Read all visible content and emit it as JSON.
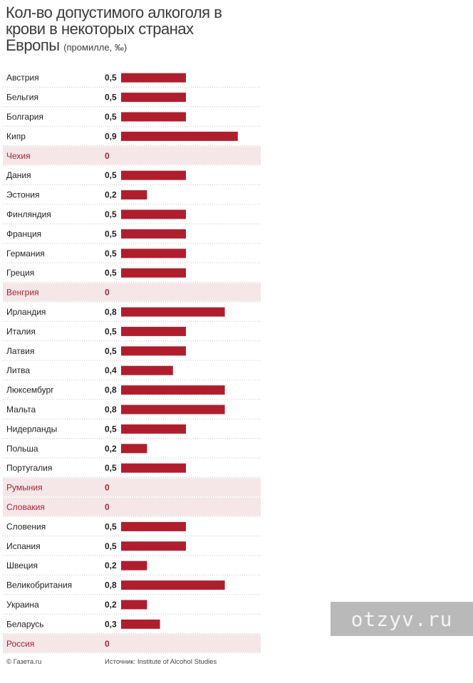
{
  "header": {
    "title": "Кол-во допустимого алкоголя в крови в некоторых странах Европы",
    "unit": "(промилле, ‰)"
  },
  "colors": {
    "bar": "#b01e2e",
    "zero_text": "#a32433",
    "zero_row_bg": "#f5e6e8"
  },
  "chart_data": {
    "type": "bar",
    "orientation": "horizontal",
    "title": "Кол-во допустимого алкоголя в крови в некоторых странах Европы",
    "subtitle": "(промилле, ‰)",
    "categories": [
      "Австрия",
      "Бельгия",
      "Болгария",
      "Кипр",
      "Чехия",
      "Дания",
      "Эстония",
      "Финляндия",
      "Франция",
      "Германия",
      "Греция",
      "Венгрия",
      "Ирландия",
      "Италия",
      "Латвия",
      "Литва",
      "Люксембург",
      "Мальта",
      "Нидерланды",
      "Польша",
      "Португалия",
      "Румыния",
      "Словакия",
      "Словения",
      "Испания",
      "Швеция",
      "Великобритания",
      "Украина",
      "Беларусь",
      "Россия"
    ],
    "values": [
      0.5,
      0.5,
      0.5,
      0.9,
      0,
      0.5,
      0.2,
      0.5,
      0.5,
      0.5,
      0.5,
      0,
      0.8,
      0.5,
      0.5,
      0.4,
      0.8,
      0.8,
      0.5,
      0.2,
      0.5,
      0,
      0,
      0.5,
      0.5,
      0.2,
      0.8,
      0.2,
      0.3,
      0
    ],
    "value_labels": [
      "0,5",
      "0,5",
      "0,5",
      "0,9",
      "0",
      "0,5",
      "0,2",
      "0,5",
      "0,5",
      "0,5",
      "0,5",
      "0",
      "0,8",
      "0,5",
      "0,5",
      "0,4",
      "0,8",
      "0,8",
      "0,5",
      "0,2",
      "0,5",
      "0",
      "0",
      "0,5",
      "0,5",
      "0,2",
      "0,8",
      "0,2",
      "0,3",
      "0"
    ],
    "xlim": [
      0,
      0.9
    ],
    "grid": false,
    "legend": "none"
  },
  "footer": {
    "copyright": "© Газета.ru",
    "source": "Источник: Institute of Alcohol Studies"
  },
  "watermark": {
    "text": "otzyv.ru"
  }
}
